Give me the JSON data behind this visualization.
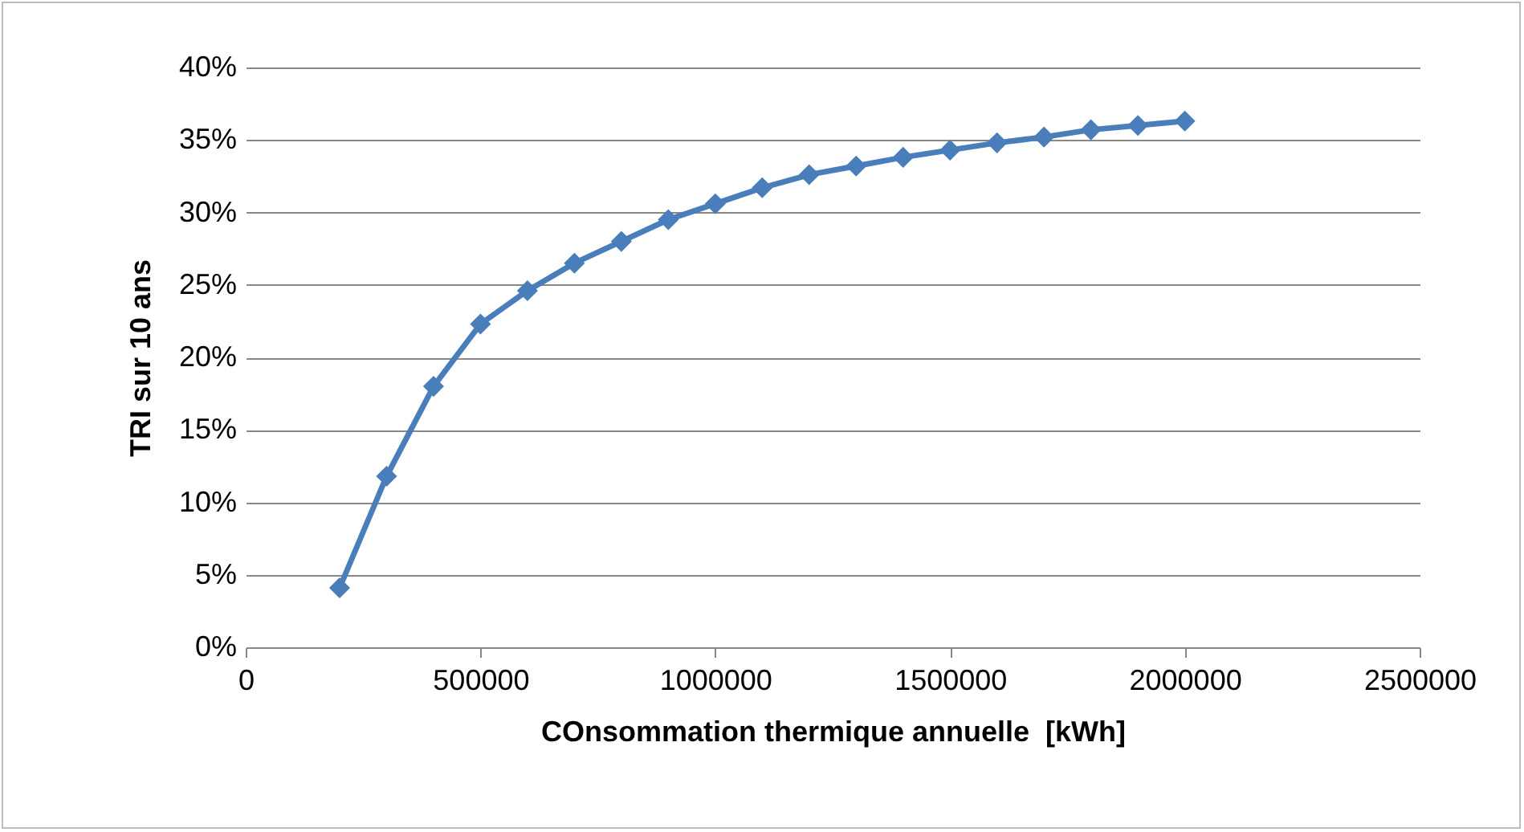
{
  "chart_data": {
    "type": "line",
    "xlabel": "COnsommation thermique annuelle  [kWh]",
    "ylabel": "TRI sur 10 ans",
    "x": [
      200000,
      300000,
      400000,
      500000,
      600000,
      700000,
      800000,
      900000,
      1000000,
      1100000,
      1200000,
      1300000,
      1400000,
      1500000,
      1600000,
      1700000,
      1800000,
      1900000,
      2000000
    ],
    "series": [
      {
        "color": "#4a7ebb",
        "values": [
          4.1,
          11.8,
          18,
          22.3,
          24.6,
          26.5,
          28,
          29.5,
          30.6,
          31.7,
          32.6,
          33.2,
          33.8,
          34.3,
          34.8,
          35.2,
          35.7,
          36,
          36.3
        ]
      }
    ],
    "xlim": [
      0,
      2500000
    ],
    "xticks": [
      0,
      500000,
      1000000,
      1500000,
      2000000,
      2500000
    ],
    "ylim": [
      0,
      40
    ],
    "yticks": [
      {
        "value": 0,
        "label": "0%"
      },
      {
        "value": 5,
        "label": "5%"
      },
      {
        "value": 10,
        "label": "10%"
      },
      {
        "value": 15,
        "label": "15%"
      },
      {
        "value": 20,
        "label": "20%"
      },
      {
        "value": 25,
        "label": "25%"
      },
      {
        "value": 30,
        "label": "30%"
      },
      {
        "value": 35,
        "label": "35%"
      },
      {
        "value": 40,
        "label": "40%"
      }
    ],
    "grid": "y",
    "marker": "diamond",
    "line_style": "solid"
  }
}
